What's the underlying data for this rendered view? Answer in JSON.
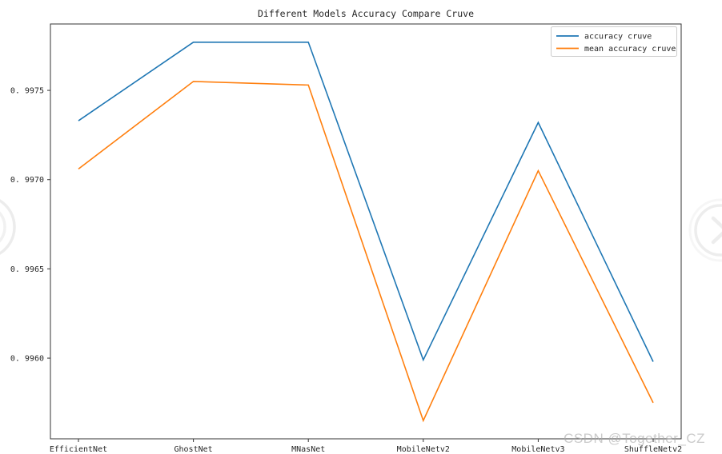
{
  "chart_data": {
    "type": "line",
    "title": "Different Models Accuracy Compare Cruve",
    "categories": [
      "EfficientNet",
      "GhostNet",
      "MNasNet",
      "MobileNetv2",
      "MobileNetv3",
      "ShuffleNetv2"
    ],
    "series": [
      {
        "name": "accuracy cruve",
        "color": "#1f77b4",
        "values": [
          0.99733,
          0.99777,
          0.99777,
          0.99599,
          0.99732,
          0.99598
        ]
      },
      {
        "name": "mean accuracy cruve",
        "color": "#ff7f0e",
        "values": [
          0.99706,
          0.99755,
          0.99753,
          0.99565,
          0.99705,
          0.99575
        ]
      }
    ],
    "xlabel": "",
    "ylabel": "",
    "yticks": [
      0.996,
      0.9965,
      0.997,
      0.9975
    ],
    "ytick_labels": [
      "0. 9960",
      "0. 9965",
      "0. 9970",
      "0. 9975"
    ],
    "ylim": [
      0.995548,
      0.997872
    ],
    "grid": false,
    "legend_position": "upper right"
  },
  "watermark": {
    "text": "CSDN @Together_CZ",
    "color": "#a9a9a9"
  },
  "icons": {
    "prev": "chevron-left-circle-icon",
    "next": "chevron-right-circle-icon"
  },
  "colors": {
    "spine": "#333333",
    "legend_border": "#cccccc",
    "arrow": "#ececec"
  }
}
